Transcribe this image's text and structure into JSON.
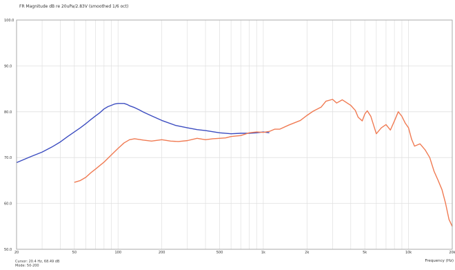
{
  "chart_data": {
    "type": "line",
    "title": "FR Magnitude dB re 20uPa/2.83V (smoothed 1/6 oct)",
    "xlabel": "Frequency (Hz)",
    "ylabel": "",
    "x_scale": "log",
    "xlim": [
      20,
      20000
    ],
    "ylim": [
      50,
      100
    ],
    "grid": true,
    "x_tick_labels": [
      "20",
      "50",
      "100",
      "200",
      "500",
      "1k",
      "2k",
      "5k",
      "10k",
      "20k"
    ],
    "x_tick_values": [
      20,
      50,
      100,
      200,
      500,
      1000,
      2000,
      5000,
      10000,
      20000
    ],
    "y_tick_labels": [
      "50.0",
      "60.0",
      "70.0",
      "80.0",
      "90.0",
      "100.0"
    ],
    "y_tick_values": [
      50,
      60,
      70,
      80,
      90,
      100
    ],
    "series": [
      {
        "color": "#3b4cc0",
        "x": [
          20,
          25,
          30,
          35,
          40,
          45,
          50,
          55,
          60,
          65,
          70,
          75,
          80,
          85,
          90,
          95,
          100,
          105,
          110,
          115,
          120,
          130,
          140,
          150,
          170,
          200,
          250,
          300,
          350,
          400,
          500,
          600,
          700,
          800,
          900,
          1000,
          1100
        ],
        "y": [
          68.9,
          70.2,
          71.2,
          72.3,
          73.4,
          74.6,
          75.6,
          76.5,
          77.4,
          78.3,
          79.1,
          79.8,
          80.6,
          81.1,
          81.4,
          81.7,
          81.8,
          81.8,
          81.8,
          81.6,
          81.3,
          80.9,
          80.4,
          79.9,
          79.1,
          78.1,
          77.0,
          76.5,
          76.1,
          75.9,
          75.4,
          75.2,
          75.3,
          75.3,
          75.4,
          75.6,
          75.4
        ]
      },
      {
        "color": "#f07a52",
        "x": [
          50,
          55,
          60,
          65,
          70,
          80,
          90,
          100,
          110,
          120,
          130,
          150,
          170,
          200,
          230,
          260,
          300,
          350,
          400,
          450,
          500,
          550,
          600,
          650,
          700,
          800,
          900,
          1000,
          1100,
          1200,
          1300,
          1500,
          1800,
          2000,
          2200,
          2500,
          2700,
          3000,
          3200,
          3500,
          4000,
          4300,
          4500,
          4800,
          5000,
          5200,
          5500,
          6000,
          6500,
          7000,
          7500,
          8000,
          8500,
          9000,
          9500,
          10000,
          10500,
          11000,
          12000,
          13000,
          14000,
          15000,
          16000,
          17000,
          18000,
          19000,
          20000
        ],
        "y": [
          64.6,
          65.0,
          65.7,
          66.7,
          67.5,
          69.0,
          70.6,
          72.0,
          73.2,
          73.9,
          74.1,
          73.8,
          73.6,
          73.9,
          73.6,
          73.5,
          73.7,
          74.2,
          73.9,
          74.1,
          74.2,
          74.3,
          74.6,
          74.7,
          74.8,
          75.4,
          75.6,
          75.5,
          75.7,
          76.2,
          76.2,
          77.1,
          78.1,
          79.2,
          80.1,
          81.0,
          82.3,
          82.7,
          81.9,
          82.6,
          81.4,
          80.3,
          78.8,
          78.0,
          79.5,
          80.2,
          79.0,
          75.2,
          76.5,
          77.2,
          76.0,
          78.0,
          80.0,
          79.0,
          77.5,
          76.5,
          74.0,
          72.5,
          73.0,
          71.7,
          70.0,
          67.0,
          65.0,
          63.0,
          60.0,
          56.5,
          55.0
        ]
      }
    ]
  },
  "status": {
    "cursor": "Cursor: 20.4 Hz, 68.49 dB",
    "mode": "Mode: 50-200"
  }
}
